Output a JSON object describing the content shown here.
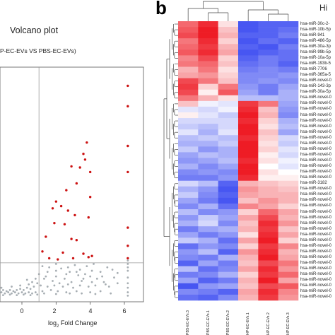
{
  "volcano": {
    "title": "Volcano plot",
    "subtitle": "P-EC-EVs VS PBS-EC-EVs)",
    "xlabel_main": "log",
    "xlabel_sub": "2",
    "xlabel_rest": " Fold Change",
    "colors": {
      "up": "#cc1111",
      "ns": "#a7aeb3",
      "frame": "#777777"
    }
  },
  "heatmap": {
    "panel_letter": "b",
    "title": "Hi",
    "colors": {
      "high": "#ee1c25",
      "mid": "#ffffff",
      "low": "#2b3cf0"
    },
    "row_labels": [
      "hsa-miR-30c-2-",
      "hsa-miR-10b-5p",
      "hsa-miR-941",
      "hsa-miR-486-5p",
      "hsa-miR-30a-3p",
      "hsa-miR-99b-5p",
      "hsa-miR-10a-5p",
      "hsa-miR-193b-5",
      "hsa-miR-7706",
      "hsa-miR-365a-5",
      "hsa-miR-novel-0",
      "hsa-miR-143-3p",
      "hsa-miR-30a-5p",
      "hsa-miR-novel-0",
      "hsa-miR-novel-0",
      "hsa-miR-novel-0",
      "hsa-miR-novel-0",
      "hsa-miR-novel-0",
      "hsa-miR-novel-0",
      "hsa-miR-novel-0",
      "hsa-miR-novel-0",
      "hsa-miR-novel-0",
      "hsa-miR-novel-0",
      "hsa-miR-novel-0",
      "hsa-miR-novel-0",
      "hsa-miR-novel-0",
      "hsa-miR-novel-0",
      "hsa-miR-novel-0",
      "hsa-miR-3182",
      "hsa-miR-novel-0",
      "hsa-miR-novel-0",
      "hsa-miR-novel-0",
      "hsa-miR-novel-0",
      "hsa-miR-novel-0",
      "hsa-miR-novel-0",
      "hsa-miR-novel-0",
      "hsa-miR-novel-0",
      "hsa-miR-novel-0",
      "hsa-miR-novel-0",
      "hsa-miR-novel-0",
      "hsa-miR-novel-0",
      "hsa-miR-novel-0",
      "hsa-miR-novel-0",
      "hsa-miR-novel-0",
      "hsa-miR-novel-0",
      "hsa-miR-novel-0",
      "hsa-miR-novel-0",
      "hsa-miR-novel-0",
      "hsa-miR-novel-0"
    ],
    "column_labels": [
      "PBS-EC-EVs.3",
      "PBS-EC-EVs.1",
      "PBS-EC-EVs.2",
      "HP-EC-EVs.1",
      "HP-EC-EVs.2",
      "HP-EC-EVs.3"
    ]
  },
  "chart_data": [
    {
      "type": "scatter",
      "title": "Volcano plot",
      "subtitle": "P-EC-EVs VS PBS-EC-EVs)",
      "xlabel": "log2 Fold Change",
      "ylabel": "",
      "xlim": [
        -2.2,
        6.6
      ],
      "x_ticks": [
        "0",
        "2",
        "4",
        "6"
      ],
      "x_tick_values": [
        0,
        2,
        4,
        6
      ],
      "threshold_lines": {
        "x": 1,
        "y": 3
      },
      "series": [
        {
          "name": "",
          "color": "#cc1111",
          "points": [
            [
              6.2,
              18.6
            ],
            [
              6.2,
              16.8
            ],
            [
              3.8,
              13.6
            ],
            [
              6.2,
              13.3
            ],
            [
              3.6,
              12.6
            ],
            [
              3.7,
              12.1
            ],
            [
              2.9,
              11.5
            ],
            [
              3.4,
              11.4
            ],
            [
              4.0,
              11.0
            ],
            [
              6.2,
              11.0
            ],
            [
              3.2,
              10.0
            ],
            [
              2.6,
              9.4
            ],
            [
              4.0,
              8.8
            ],
            [
              2.0,
              8.4
            ],
            [
              2.3,
              8.0
            ],
            [
              1.8,
              7.8
            ],
            [
              2.7,
              7.6
            ],
            [
              3.1,
              7.2
            ],
            [
              3.9,
              7.0
            ],
            [
              1.9,
              6.5
            ],
            [
              2.5,
              6.4
            ],
            [
              6.2,
              6.1
            ],
            [
              1.4,
              5.3
            ],
            [
              2.9,
              5.1
            ],
            [
              3.2,
              5.0
            ],
            [
              6.2,
              4.5
            ],
            [
              1.2,
              4.0
            ],
            [
              2.4,
              3.9
            ],
            [
              3.6,
              3.8
            ],
            [
              4.1,
              3.6
            ],
            [
              1.6,
              3.4
            ],
            [
              2.1,
              3.3
            ],
            [
              3.0,
              3.4
            ],
            [
              3.9,
              3.5
            ],
            [
              6.2,
              3.4
            ]
          ]
        },
        {
          "name": "",
          "color": "#a7aeb3",
          "points": [
            [
              6.2,
              3.2
            ],
            [
              6.2,
              2.9
            ],
            [
              6.2,
              2.6
            ],
            [
              6.2,
              2.3
            ],
            [
              6.2,
              1.7
            ],
            [
              6.2,
              1.2
            ],
            [
              6.2,
              0.8
            ],
            [
              6.2,
              0.4
            ],
            [
              6.2,
              0.1
            ],
            [
              1.2,
              2.7
            ],
            [
              1.6,
              2.6
            ],
            [
              2.0,
              2.9
            ],
            [
              2.3,
              2.5
            ],
            [
              2.7,
              2.6
            ],
            [
              3.1,
              2.8
            ],
            [
              3.4,
              2.4
            ],
            [
              3.8,
              2.7
            ],
            [
              4.2,
              2.9
            ],
            [
              4.6,
              2.2
            ],
            [
              5.0,
              2.6
            ],
            [
              5.3,
              2.4
            ],
            [
              5.6,
              2.1
            ],
            [
              2.8,
              2.2
            ],
            [
              3.3,
              1.9
            ],
            [
              3.7,
              2.0
            ],
            [
              2.0,
              1.8
            ],
            [
              2.5,
              1.6
            ],
            [
              4.0,
              1.8
            ],
            [
              4.4,
              1.6
            ],
            [
              1.5,
              2.2
            ],
            [
              1.8,
              1.4
            ],
            [
              2.2,
              1.2
            ],
            [
              2.9,
              1.3
            ],
            [
              3.5,
              1.4
            ],
            [
              4.8,
              1.3
            ],
            [
              1.3,
              1.6
            ],
            [
              1.1,
              1.0
            ],
            [
              1.5,
              0.9
            ],
            [
              2.4,
              0.9
            ],
            [
              3.0,
              0.8
            ],
            [
              3.9,
              0.9
            ],
            [
              4.3,
              1.0
            ],
            [
              5.1,
              0.9
            ],
            [
              1.2,
              0.5
            ],
            [
              1.7,
              0.6
            ],
            [
              2.1,
              0.5
            ],
            [
              2.6,
              0.4
            ],
            [
              3.2,
              0.5
            ],
            [
              4.0,
              0.4
            ],
            [
              4.6,
              0.5
            ],
            [
              0.9,
              1.2
            ],
            [
              0.7,
              0.9
            ],
            [
              0.5,
              0.7
            ],
            [
              0.3,
              0.8
            ],
            [
              0.1,
              0.6
            ],
            [
              -0.1,
              0.7
            ],
            [
              -0.3,
              0.6
            ],
            [
              -0.5,
              0.5
            ],
            [
              -0.7,
              0.6
            ],
            [
              -0.9,
              0.5
            ],
            [
              -1.1,
              0.6
            ],
            [
              -1.3,
              0.5
            ],
            [
              -1.5,
              0.6
            ],
            [
              -1.7,
              0.5
            ],
            [
              -1.9,
              0.6
            ],
            [
              -2.1,
              0.5
            ],
            [
              0.8,
              0.4
            ],
            [
              0.6,
              0.3
            ],
            [
              0.4,
              0.4
            ],
            [
              0.2,
              0.3
            ],
            [
              0.0,
              0.4
            ],
            [
              -0.2,
              0.3
            ],
            [
              -0.4,
              0.4
            ],
            [
              -0.6,
              0.3
            ],
            [
              -0.8,
              0.4
            ],
            [
              -1.0,
              0.3
            ],
            [
              -1.2,
              0.4
            ],
            [
              -1.4,
              0.3
            ],
            [
              -1.6,
              0.4
            ],
            [
              -1.8,
              0.3
            ],
            [
              -2.0,
              0.4
            ],
            [
              0.9,
              0.2
            ],
            [
              0.5,
              0.15
            ],
            [
              0.1,
              0.2
            ],
            [
              -0.3,
              0.15
            ],
            [
              -0.7,
              0.2
            ],
            [
              -1.1,
              0.15
            ],
            [
              -1.5,
              0.2
            ],
            [
              -1.9,
              0.15
            ],
            [
              1.0,
              2.0
            ],
            [
              0.8,
              1.6
            ],
            [
              0.6,
              1.3
            ],
            [
              0.4,
              1.1
            ],
            [
              -0.1,
              1.0
            ],
            [
              -0.6,
              0.9
            ],
            [
              -1.2,
              0.8
            ],
            [
              -1.8,
              0.9
            ],
            [
              0.3,
              1.5
            ],
            [
              1.4,
              1.8
            ],
            [
              2.0,
              2.3
            ],
            [
              2.6,
              2.0
            ],
            [
              3.2,
              2.2
            ],
            [
              3.6,
              1.6
            ],
            [
              4.1,
              2.3
            ],
            [
              4.7,
              1.8
            ],
            [
              5.4,
              1.7
            ],
            [
              1.9,
              1.0
            ],
            [
              2.7,
              1.1
            ],
            [
              3.4,
              1.0
            ],
            [
              4.1,
              1.3
            ],
            [
              4.9,
              1.1
            ],
            [
              5.6,
              1.2
            ],
            [
              1.3,
              0.3
            ],
            [
              2.0,
              0.25
            ],
            [
              2.8,
              0.3
            ],
            [
              3.5,
              0.3
            ],
            [
              4.3,
              0.25
            ],
            [
              5.2,
              0.3
            ]
          ]
        }
      ]
    },
    {
      "type": "heatmap",
      "title": "Hi",
      "rows": 49,
      "columns": [
        "PBS-EC-EVs.3",
        "PBS-EC-EVs.1",
        "PBS-EC-EVs.2",
        "HP-EC-EVs.1",
        "HP-EC-EVs.2",
        "HP-EC-EVs.3"
      ],
      "scale": [
        -1.5,
        1.5
      ],
      "values": [
        [
          1.0,
          1.4,
          0.2,
          -1.3,
          -1.2,
          -1.2
        ],
        [
          1.1,
          1.5,
          0.4,
          -1.3,
          -1.2,
          -1.1
        ],
        [
          1.2,
          1.5,
          0.5,
          -1.2,
          -1.2,
          -1.0
        ],
        [
          0.9,
          1.4,
          0.3,
          -1.3,
          -1.1,
          -1.2
        ],
        [
          1.0,
          1.3,
          0.5,
          -1.2,
          -1.3,
          -1.0
        ],
        [
          1.1,
          1.4,
          0.6,
          -1.3,
          -1.2,
          -1.1
        ],
        [
          0.8,
          1.2,
          0.3,
          -1.2,
          -1.0,
          -1.1
        ],
        [
          0.9,
          1.0,
          0.4,
          -1.1,
          -1.0,
          -1.2
        ],
        [
          0.5,
          0.9,
          0.2,
          -1.0,
          -0.9,
          -1.0
        ],
        [
          0.6,
          0.7,
          0.3,
          -0.9,
          -0.9,
          -0.8
        ],
        [
          1.2,
          0.9,
          0.4,
          -0.9,
          -0.8,
          -0.9
        ],
        [
          1.3,
          0.3,
          0.9,
          -0.8,
          -1.0,
          -0.7
        ],
        [
          1.2,
          0.1,
          1.1,
          -0.7,
          -1.0,
          -0.6
        ],
        [
          0.9,
          0.5,
          0.2,
          -0.5,
          -0.5,
          -0.6
        ],
        [
          0.4,
          -0.1,
          -0.2,
          1.3,
          0.9,
          -0.7
        ],
        [
          -0.2,
          -0.3,
          -0.1,
          1.4,
          0.4,
          -0.8
        ],
        [
          0.1,
          -0.2,
          -0.4,
          1.5,
          0.5,
          -0.9
        ],
        [
          -0.3,
          -0.3,
          -0.3,
          1.4,
          0.3,
          -0.6
        ],
        [
          -0.4,
          -0.5,
          -0.3,
          1.5,
          0.2,
          -0.5
        ],
        [
          -0.2,
          -0.6,
          -0.2,
          1.5,
          0.4,
          -0.7
        ],
        [
          -0.5,
          -0.4,
          -0.5,
          1.4,
          0.3,
          -0.3
        ],
        [
          -0.6,
          -0.6,
          -0.4,
          1.5,
          0.2,
          -0.4
        ],
        [
          -0.4,
          -0.8,
          -0.6,
          1.5,
          0.3,
          -0.2
        ],
        [
          -0.7,
          -0.5,
          -0.6,
          1.5,
          0.1,
          -0.3
        ],
        [
          -0.8,
          -0.7,
          -0.5,
          1.4,
          0.2,
          -0.1
        ],
        [
          -0.6,
          -0.9,
          -0.7,
          1.5,
          0.0,
          -0.2
        ],
        [
          -0.9,
          -0.8,
          -0.9,
          1.5,
          0.2,
          0.0
        ],
        [
          -1.0,
          -1.0,
          -0.8,
          1.4,
          0.1,
          0.1
        ],
        [
          -0.3,
          -0.5,
          -1.2,
          0.5,
          0.4,
          0.3
        ],
        [
          -0.6,
          -0.8,
          -1.3,
          0.7,
          0.5,
          0.4
        ],
        [
          -0.4,
          -0.9,
          -1.2,
          0.6,
          0.5,
          0.5
        ],
        [
          -0.7,
          -1.0,
          -1.3,
          0.4,
          0.7,
          0.5
        ],
        [
          -0.9,
          -0.6,
          -1.1,
          0.8,
          0.6,
          0.3
        ],
        [
          -0.5,
          -0.9,
          -0.8,
          0.3,
          1.0,
          0.6
        ],
        [
          -0.8,
          -0.4,
          -0.7,
          0.6,
          1.2,
          0.5
        ],
        [
          -0.6,
          -0.3,
          -0.9,
          0.4,
          1.4,
          0.7
        ],
        [
          -1.0,
          -0.7,
          -0.6,
          0.5,
          1.3,
          0.4
        ],
        [
          -0.7,
          -1.0,
          -0.8,
          0.2,
          1.4,
          0.6
        ],
        [
          -0.4,
          -0.6,
          -1.1,
          0.6,
          1.5,
          0.3
        ],
        [
          -1.1,
          -0.8,
          -0.9,
          0.3,
          1.3,
          0.8
        ],
        [
          -0.8,
          -0.5,
          -1.2,
          0.7,
          1.4,
          0.5
        ],
        [
          -0.9,
          -1.0,
          -0.6,
          0.5,
          1.5,
          0.6
        ],
        [
          -1.2,
          -0.7,
          -1.0,
          0.4,
          1.2,
          0.9
        ],
        [
          -0.5,
          -1.1,
          -0.9,
          0.6,
          1.4,
          0.7
        ],
        [
          -1.0,
          -0.9,
          -0.6,
          0.3,
          1.3,
          1.0
        ],
        [
          -0.7,
          -1.2,
          -1.0,
          0.5,
          1.5,
          0.6
        ],
        [
          -1.3,
          -0.8,
          -0.7,
          0.4,
          1.2,
          1.1
        ],
        [
          -0.9,
          -1.0,
          -1.2,
          0.6,
          1.4,
          0.8
        ],
        [
          -1.1,
          -1.2,
          -0.9,
          0.5,
          1.3,
          0.7
        ]
      ]
    }
  ]
}
